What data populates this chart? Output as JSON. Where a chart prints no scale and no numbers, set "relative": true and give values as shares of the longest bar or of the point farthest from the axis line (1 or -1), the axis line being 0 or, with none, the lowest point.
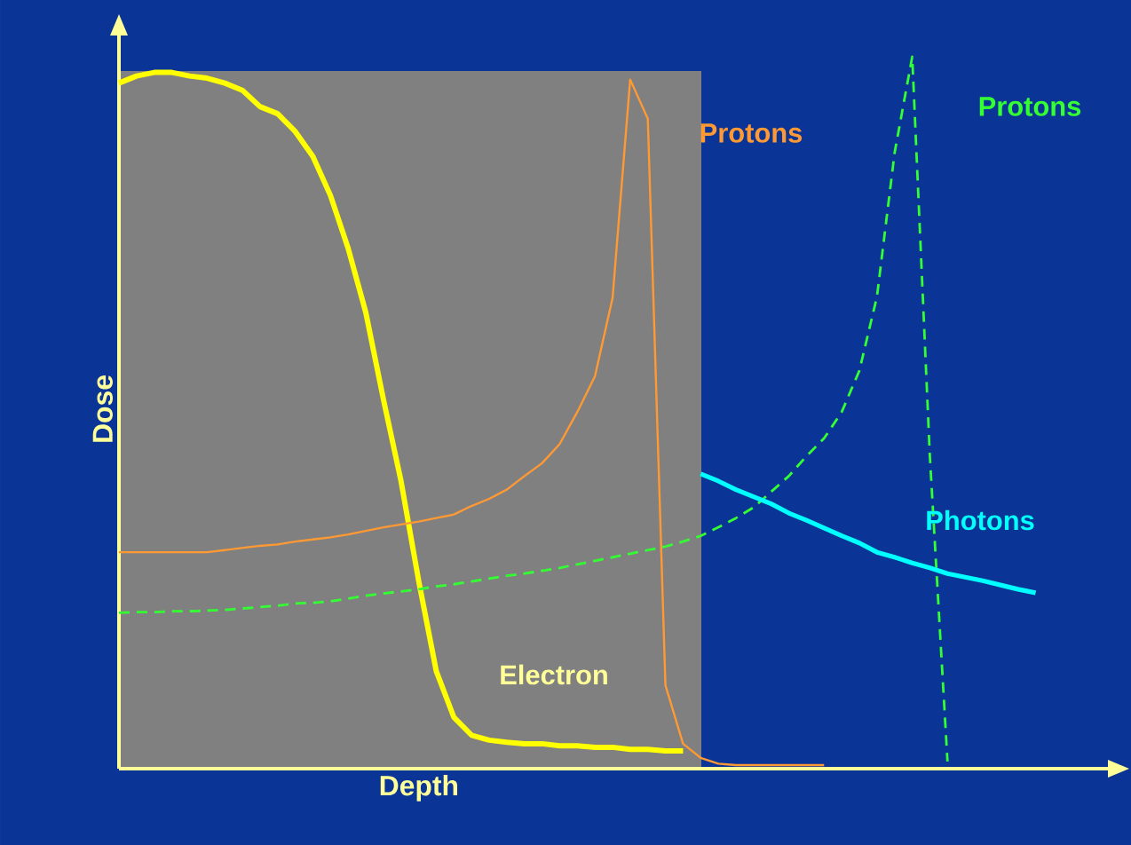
{
  "chart_data": {
    "type": "line",
    "relative": true,
    "xlabel": "Depth",
    "ylabel": "Dose",
    "categories": [
      null,
      null,
      null,
      null,
      null,
      null,
      null,
      null,
      null,
      null,
      null,
      null,
      null,
      null,
      null,
      null,
      null,
      null,
      null,
      null,
      null,
      null,
      null,
      null,
      null,
      null,
      null,
      null,
      null,
      null,
      null,
      null,
      null,
      null,
      null,
      null,
      null,
      null,
      null,
      null,
      null,
      null,
      null,
      null,
      null,
      null,
      null,
      null,
      null,
      null,
      null,
      null,
      null
    ],
    "series": [
      {
        "name": "Electron",
        "color": "#ffff00",
        "values": [
          0.963,
          0.973,
          0.978,
          0.978,
          0.973,
          0.97,
          0.963,
          0.953,
          0.93,
          0.92,
          0.895,
          0.86,
          0.805,
          0.731,
          0.641,
          0.519,
          0.404,
          0.264,
          0.137,
          0.072,
          0.047,
          0.04,
          0.037,
          0.035,
          0.035,
          0.032,
          0.032,
          0.03,
          0.03,
          0.027,
          0.027,
          0.025,
          0.025,
          null,
          null,
          null,
          null,
          null,
          null,
          null,
          null,
          null,
          null,
          null,
          null,
          null,
          null,
          null,
          null,
          null,
          null,
          null,
          null
        ]
      },
      {
        "name": "Protons",
        "color": "#ff9933",
        "values": [
          0.304,
          0.304,
          0.304,
          0.304,
          0.304,
          0.304,
          0.307,
          0.31,
          0.313,
          0.315,
          0.319,
          0.322,
          0.325,
          0.329,
          0.334,
          0.339,
          0.343,
          0.347,
          0.352,
          0.357,
          0.369,
          0.379,
          0.392,
          0.411,
          0.429,
          0.456,
          0.501,
          0.551,
          0.661,
          0.968,
          0.913,
          0.117,
          0.035,
          0.015,
          0.007,
          0.005,
          0.005,
          0.005,
          0.005,
          0.005,
          0.005,
          null,
          null,
          null,
          null,
          null,
          null,
          null,
          null,
          null,
          null,
          null,
          null
        ]
      },
      {
        "name": "Protons",
        "color": "#33ff33",
        "line_style": "dashed",
        "values": [
          0.219,
          0.22,
          0.22,
          0.221,
          0.221,
          0.222,
          0.223,
          0.225,
          0.227,
          0.229,
          0.232,
          0.233,
          0.235,
          0.239,
          0.243,
          0.246,
          0.249,
          0.252,
          0.256,
          0.259,
          0.263,
          0.267,
          0.271,
          0.274,
          0.278,
          0.282,
          0.287,
          0.292,
          0.297,
          0.302,
          0.307,
          0.312,
          0.319,
          0.327,
          0.339,
          0.352,
          0.367,
          0.389,
          0.411,
          0.439,
          0.464,
          0.501,
          0.559,
          0.663,
          0.865,
          1.0,
          0.439,
          0.01,
          null,
          null,
          null,
          null,
          null
        ]
      },
      {
        "name": "Photons",
        "color": "#00ffff",
        "values": [
          null,
          null,
          null,
          null,
          null,
          null,
          null,
          null,
          null,
          null,
          null,
          null,
          null,
          null,
          null,
          null,
          null,
          null,
          null,
          null,
          null,
          null,
          null,
          null,
          null,
          null,
          null,
          null,
          null,
          null,
          null,
          null,
          null,
          0.414,
          0.404,
          0.392,
          0.382,
          0.372,
          0.359,
          0.349,
          0.338,
          0.327,
          0.317,
          0.304,
          0.297,
          0.289,
          0.282,
          0.274,
          0.269,
          0.264,
          0.258,
          0.252,
          0.247
        ]
      }
    ]
  }
}
